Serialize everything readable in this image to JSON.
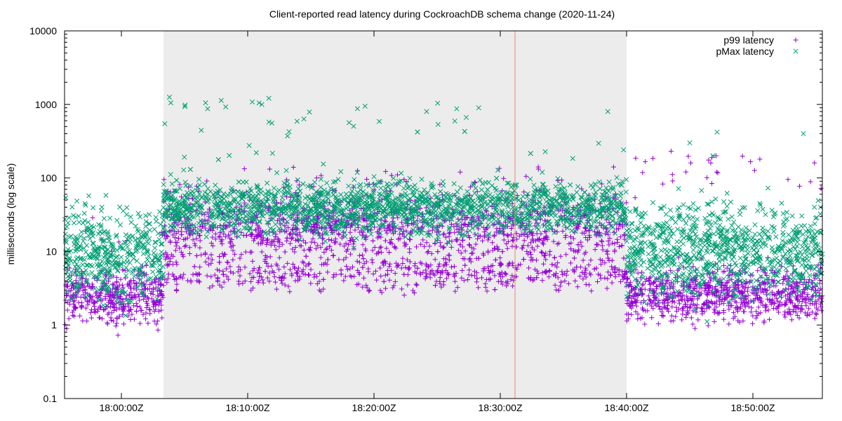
{
  "chart_data": {
    "type": "scatter",
    "title": "Client-reported read latency during CockroachDB schema change (2020-11-24)",
    "xlabel": "",
    "ylabel": "milliseconds (log scale)",
    "y_scale": "log",
    "ylim": [
      0.1,
      10000
    ],
    "xlim": [
      "17:55:30Z",
      "18:55:30Z"
    ],
    "grid": false,
    "legend_position": "top-right",
    "y_ticks": [
      "0.1",
      "1",
      "10",
      "100",
      "1000",
      "10000"
    ],
    "x_ticks": [
      "18:00:00Z",
      "18:10:00Z",
      "18:20:00Z",
      "18:30:00Z",
      "18:40:00Z",
      "18:50:00Z"
    ],
    "shaded_region": {
      "start": "18:03:20Z",
      "end": "18:40:00Z",
      "color": "#ececec"
    },
    "vertical_marker": {
      "at": "18:31:10Z",
      "color": "#e8886a"
    },
    "series": [
      {
        "name": "p99 latency",
        "marker": "+",
        "color": "#9400d3",
        "phases": [
          {
            "from": "17:55:30Z",
            "to": "18:03:20Z",
            "median": 2.4,
            "spread": 0.35,
            "spikes": [
              5,
              12,
              24
            ]
          },
          {
            "from": "18:03:20Z",
            "to": "18:40:00Z",
            "median": 20,
            "spread": 0.45,
            "low_band": 5,
            "spikes": [
              80,
              120
            ]
          },
          {
            "from": "18:40:00Z",
            "to": "18:55:30Z",
            "median": 2.6,
            "spread": 0.35,
            "spikes": [
              84,
              120,
              160,
              200
            ]
          }
        ],
        "outliers": [
          {
            "x": "18:45:05Z",
            "y": 160
          },
          {
            "x": "18:46:40Z",
            "y": 160
          },
          {
            "x": "18:46:45Z",
            "y": 84
          },
          {
            "x": "18:47:05Z",
            "y": 200
          },
          {
            "x": "18:47:08Z",
            "y": 120
          }
        ]
      },
      {
        "name": "pMax latency",
        "marker": "x",
        "color": "#009e73",
        "phases": [
          {
            "from": "17:55:30Z",
            "to": "18:03:20Z",
            "median": 9,
            "spread": 0.6,
            "spikes": [
              30,
              40,
              45
            ]
          },
          {
            "from": "18:03:20Z",
            "to": "18:40:00Z",
            "median": 40,
            "spread": 0.35,
            "spikes": [
              200,
              400,
              600,
              800,
              1050
            ]
          },
          {
            "from": "18:40:00Z",
            "to": "18:55:30Z",
            "median": 10,
            "spread": 0.6,
            "spikes": [
              30,
              40
            ]
          }
        ],
        "outliers": [
          {
            "x": "18:03:55Z",
            "y": 1050
          },
          {
            "x": "18:06:40Z",
            "y": 1050
          },
          {
            "x": "18:24:10Z",
            "y": 800
          },
          {
            "x": "18:45:00Z",
            "y": 300
          },
          {
            "x": "18:46:50Z",
            "y": 200
          },
          {
            "x": "18:47:10Z",
            "y": 420
          },
          {
            "x": "18:54:00Z",
            "y": 400
          }
        ]
      }
    ]
  }
}
